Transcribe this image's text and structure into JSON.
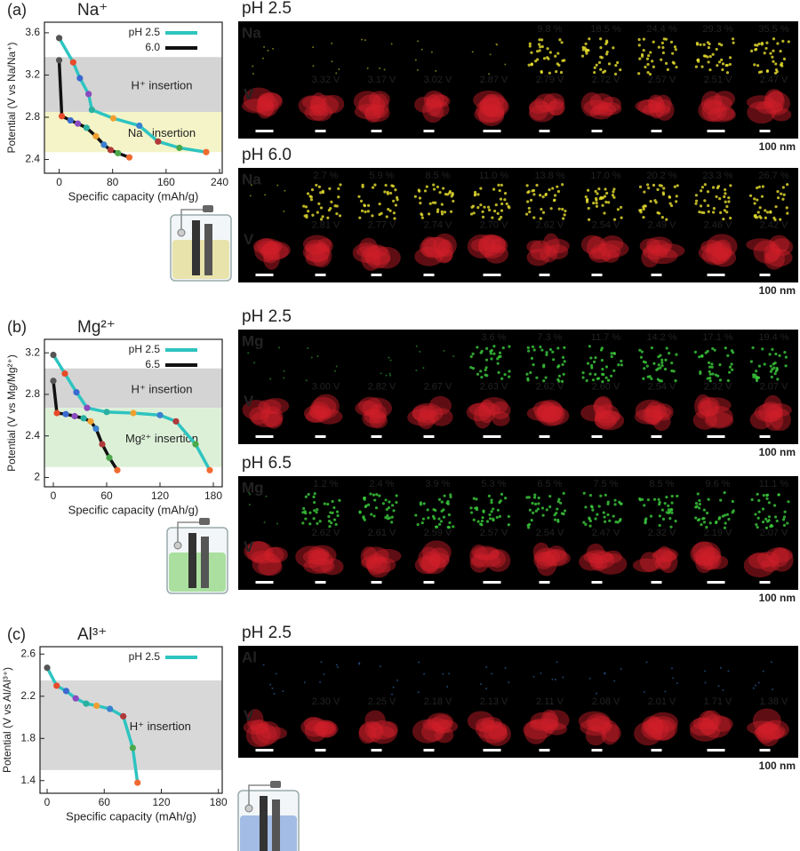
{
  "chart_data": [
    {
      "type": "line",
      "panel_label": "(a)",
      "title": "Na⁺",
      "title_color": "#8a9a20",
      "x_label": "Specific capacity (mAh/g)",
      "y_label": "Potential (V vs Na/Na⁺)",
      "xlim": [
        -22,
        244
      ],
      "ylim": [
        2.27,
        3.7
      ],
      "xticks": [
        0,
        80,
        160,
        240
      ],
      "yticks": [
        2.4,
        2.8,
        3.2,
        3.6
      ],
      "regions": [
        {
          "label": "H⁺ insertion",
          "range": [
            2.85,
            3.37
          ],
          "color": "#d4d4d4",
          "label_color": "#111111"
        },
        {
          "label": "Na⁺ insertion",
          "range": [
            2.47,
            2.85
          ],
          "color": "#f4f4c8",
          "label_color": "#9a8a20"
        }
      ],
      "series": [
        {
          "name": "pH 2.5",
          "color": "#2ec4c0",
          "x": [
            0,
            21,
            31,
            44,
            49,
            81,
            120,
            148,
            180,
            220
          ],
          "values": [
            3.55,
            3.32,
            3.17,
            3.02,
            2.87,
            2.79,
            2.72,
            2.57,
            2.51,
            2.47
          ],
          "marker_colors": [
            "#555555",
            "#e84a2a",
            "#3a6ad0",
            "#8a4ac0",
            "#2ab0a0",
            "#f0a030",
            "#3a80d0",
            "#b03a3a",
            "#4aa84a",
            "#f06a30"
          ]
        },
        {
          "name": "6.0",
          "color": "#111111",
          "x": [
            0,
            4,
            17,
            28,
            41,
            55,
            67,
            77,
            88,
            105
          ],
          "values": [
            3.34,
            2.81,
            2.77,
            2.74,
            2.7,
            2.62,
            2.54,
            2.49,
            2.46,
            2.42
          ],
          "marker_colors": [
            "#555555",
            "#e84a2a",
            "#3a6ad0",
            "#8a4ac0",
            "#2ab0a0",
            "#f0a030",
            "#3a80d0",
            "#b03a3a",
            "#4aa84a",
            "#f06a30"
          ]
        }
      ]
    },
    {
      "type": "line",
      "panel_label": "(b)",
      "title": "Mg²⁺",
      "title_color": "#2e8b3a",
      "x_label": "Specific capacity (mAh/g)",
      "y_label": "Potential (V vs Mg/Mg²⁺)",
      "xlim": [
        -10,
        190
      ],
      "ylim": [
        1.91,
        3.33
      ],
      "xticks": [
        0,
        60,
        120,
        180
      ],
      "yticks": [
        2.0,
        2.4,
        2.8,
        3.2
      ],
      "regions": [
        {
          "label": "H⁺ insertion",
          "range": [
            2.67,
            3.05
          ],
          "color": "#d4d4d4",
          "label_color": "#111111"
        },
        {
          "label": "Mg²⁺ insertion",
          "range": [
            2.1,
            2.67
          ],
          "color": "#dcf0d8",
          "label_color": "#2e8b3a"
        }
      ],
      "series": [
        {
          "name": "pH 2.5",
          "color": "#2ec4c0",
          "x": [
            0,
            13,
            26,
            38,
            60,
            90,
            120,
            138,
            160,
            176
          ],
          "values": [
            3.18,
            3.0,
            2.82,
            2.67,
            2.63,
            2.62,
            2.6,
            2.54,
            2.32,
            2.07
          ],
          "marker_colors": [
            "#555555",
            "#e84a2a",
            "#3a6ad0",
            "#8a4ac0",
            "#2ab0a0",
            "#f0a030",
            "#3a80d0",
            "#b03a3a",
            "#4aa84a",
            "#f06a30"
          ]
        },
        {
          "name": "6.5",
          "color": "#111111",
          "x": [
            0,
            4,
            14,
            24,
            34,
            42,
            48,
            55,
            63,
            72
          ],
          "values": [
            2.93,
            2.62,
            2.61,
            2.59,
            2.57,
            2.54,
            2.47,
            2.32,
            2.19,
            2.07
          ],
          "marker_colors": [
            "#555555",
            "#e84a2a",
            "#3a6ad0",
            "#8a4ac0",
            "#2ab0a0",
            "#f0a030",
            "#3a80d0",
            "#b03a3a",
            "#4aa84a",
            "#f06a30"
          ]
        }
      ]
    },
    {
      "type": "line",
      "panel_label": "(c)",
      "title": "Al³⁺",
      "title_color": "#2a70c0",
      "x_label": "Specific capacity (mAh/g)",
      "y_label": "Potential (V vs Al/Al³⁺)",
      "xlim": [
        -7.5,
        184
      ],
      "ylim": [
        1.28,
        2.67
      ],
      "xticks": [
        0,
        60,
        120,
        180
      ],
      "yticks": [
        1.4,
        1.8,
        2.2,
        2.6
      ],
      "regions": [
        {
          "label": "H⁺ insertion",
          "range": [
            1.5,
            2.35
          ],
          "color": "#d8d8d8",
          "label_color": "#111111"
        }
      ],
      "series": [
        {
          "name": "pH 2.5",
          "color": "#2ec4c0",
          "x": [
            0,
            10,
            20,
            30,
            41,
            52,
            66,
            80,
            90,
            95
          ],
          "values": [
            2.47,
            2.3,
            2.25,
            2.18,
            2.13,
            2.11,
            2.08,
            2.01,
            1.71,
            1.38
          ],
          "marker_colors": [
            "#555555",
            "#e84a2a",
            "#3a6ad0",
            "#8a4ac0",
            "#2ab0a0",
            "#f0a030",
            "#3a80d0",
            "#b03a3a",
            "#4aa84a",
            "#f06a30"
          ]
        }
      ]
    }
  ],
  "image_panels": [
    {
      "title": "pH 2.5",
      "element": "Na",
      "element_color": "#e8e030",
      "vanadium": "V",
      "scale_bar": "100 nm",
      "percents": [
        null,
        null,
        null,
        null,
        null,
        "9.8 %",
        "18.5 %",
        "24.4 %",
        "29.3 %",
        "35.5 %"
      ],
      "voltages": [
        null,
        "3.32 V",
        "3.17 V",
        "3.02 V",
        "2.87 V",
        "2.79 V",
        "2.72 V",
        "2.57 V",
        "2.51 V",
        "2.47 V"
      ]
    },
    {
      "title": "pH 6.0",
      "element": "Na",
      "element_color": "#e8e030",
      "vanadium": "V",
      "scale_bar": "100 nm",
      "percents": [
        null,
        "2.7 %",
        "5.9 %",
        "8.5 %",
        "11.0 %",
        "13.8 %",
        "17.0 %",
        "20.2 %",
        "23.3 %",
        "26.7 %"
      ],
      "voltages": [
        null,
        "2.81 V",
        "2.77 V",
        "2.74 V",
        "2.70 V",
        "2.62 V",
        "2.54 V",
        "2.49 V",
        "2.46 V",
        "2.42 V"
      ]
    },
    {
      "title": "pH 2.5",
      "element": "Mg",
      "element_color": "#3ccc3c",
      "vanadium": "V",
      "scale_bar": "100 nm",
      "percents": [
        null,
        null,
        null,
        null,
        "3.6 %",
        "7.3 %",
        "11.7 %",
        "14.2 %",
        "17.1 %",
        "19.4 %"
      ],
      "voltages": [
        null,
        "3.00 V",
        "2.82 V",
        "2.67 V",
        "2.63 V",
        "2.62 V",
        "2.60 V",
        "2.54 V",
        "2.32 V",
        "2.07 V"
      ]
    },
    {
      "title": "pH 6.5",
      "element": "Mg",
      "element_color": "#3ccc3c",
      "vanadium": "V",
      "scale_bar": "100 nm",
      "percents": [
        null,
        "1.2 %",
        "2.4 %",
        "3.9 %",
        "5.3 %",
        "6.5 %",
        "7.5 %",
        "8.5 %",
        "9.6 %",
        "11.1 %"
      ],
      "voltages": [
        null,
        "2.62 V",
        "2.61 V",
        "2.59 V",
        "2.57 V",
        "2.54 V",
        "2.47 V",
        "2.32 V",
        "2.19 V",
        "2.07 V"
      ]
    },
    {
      "title": "pH 2.5",
      "element": "Al",
      "element_color": "#3a80d8",
      "vanadium": "V",
      "scale_bar": "100 nm",
      "percents": [
        null,
        null,
        null,
        null,
        null,
        null,
        null,
        null,
        null,
        null
      ],
      "voltages": [
        null,
        "2.30 V",
        "2.25 V",
        "2.18 V",
        "2.13 V",
        "2.11 V",
        "2.08 V",
        "2.01 V",
        "1.71 V",
        "1.38 V"
      ]
    }
  ]
}
